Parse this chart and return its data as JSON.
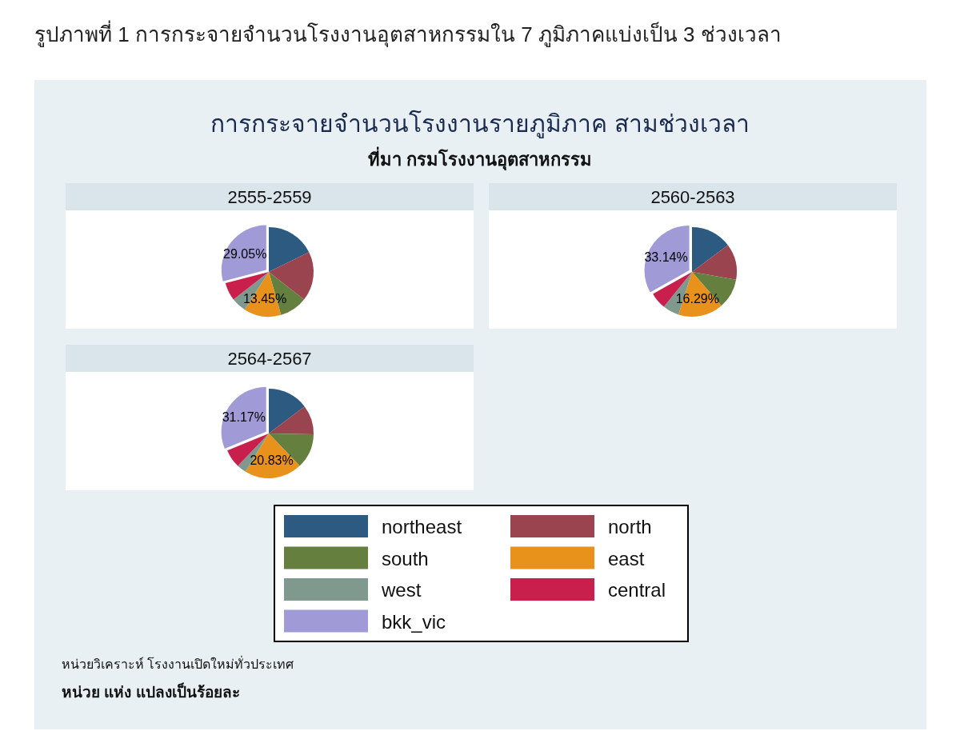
{
  "chart_data": [
    {
      "type": "other",
      "title": "การกระจายจำนวนโรงงานรายภูมิภาค สามช่วงเวลา",
      "subtitle": "ที่มา กรมโรงงานอุตสาหกรรม",
      "annotations": [
        "รูปภาพที่ 1 การกระจายจำนวนโรงงานอุตสาหกรรมใน 7 ภูมิภาคแบ่งเป็น 3 ช่วงเวลา",
        "หน่วยวิเคราะห์ โรงงานเปิดใหม่ทั่วประเทศ",
        "หน่วย แห่ง  แปลงเป็นร้อยละ"
      ]
    },
    {
      "type": "pie",
      "title": "2555-2559",
      "legend": "bottom",
      "categories": [
        "northeast",
        "north",
        "south",
        "east",
        "west",
        "central",
        "bkk_vic"
      ],
      "colors": [
        "#2d5a80",
        "#9a4450",
        "#657f3f",
        "#e8921c",
        "#7f998f",
        "#c81f4c",
        "#a09ad6"
      ],
      "values": [
        17.7,
        17.9,
        10.0,
        13.45,
        5.4,
        6.5,
        29.05
      ],
      "value_labels": [
        null,
        null,
        null,
        "13.45%",
        null,
        null,
        "29.05%"
      ]
    },
    {
      "type": "pie",
      "title": "2560-2563",
      "colors": [
        "#2d5a80",
        "#9a4450",
        "#657f3f",
        "#e8921c",
        "#7f998f",
        "#c81f4c",
        "#a09ad6"
      ],
      "values": [
        14.8,
        13.0,
        10.8,
        16.29,
        5.9,
        6.07,
        33.14
      ],
      "value_labels": [
        null,
        null,
        null,
        "16.29%",
        null,
        null,
        "33.14%"
      ]
    },
    {
      "type": "pie",
      "title": "2564-2567",
      "colors": [
        "#2d5a80",
        "#9a4450",
        "#657f3f",
        "#e8921c",
        "#7f998f",
        "#c81f4c",
        "#a09ad6"
      ],
      "values": [
        14.7,
        10.6,
        12.6,
        20.83,
        3.4,
        6.7,
        31.17
      ],
      "value_labels": [
        null,
        null,
        null,
        "20.83%",
        null,
        null,
        "31.17%"
      ]
    }
  ]
}
